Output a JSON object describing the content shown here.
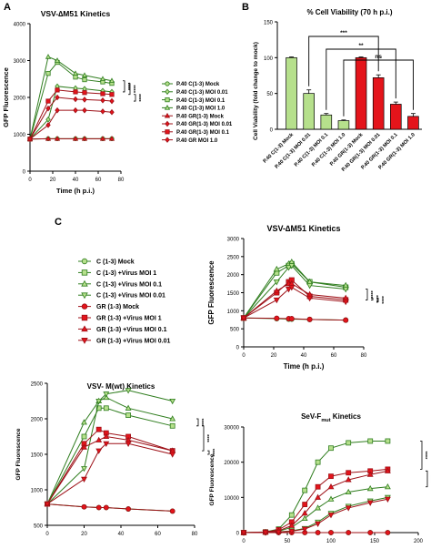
{
  "panel_labels": [
    "A",
    "B",
    "C"
  ],
  "colors": {
    "green_light": "#b6e08c",
    "green_dark": "#2f7d1e",
    "red": "#e4141b",
    "dark_red": "#9d0f16",
    "black": "#000000"
  },
  "chart_data": [
    {
      "id": "A",
      "type": "line",
      "title": "VSV-∆M51 Kinetics",
      "xlabel": "Time (h p.i.)",
      "ylabel": "GFP Fluorescence",
      "xlim": [
        0,
        80
      ],
      "ylim": [
        0,
        4000
      ],
      "xticks": [
        "0",
        "20",
        "40",
        "60",
        "80"
      ],
      "yticks": [
        "0",
        "1000",
        "2000",
        "3000",
        "4000"
      ],
      "x": [
        0,
        16,
        24,
        40,
        48,
        64,
        72
      ],
      "series": [
        {
          "name": "P.40 C(1-3) Mock",
          "marker": "circle",
          "values": [
            870,
            880,
            880,
            880,
            880,
            880,
            880
          ]
        },
        {
          "name": "P.40 C(1-3) MOI 0.01",
          "marker": "diamond",
          "values": [
            870,
            1400,
            2300,
            2250,
            2230,
            2180,
            2150
          ]
        },
        {
          "name": "P.40 C(1-3) MOI 0.1",
          "marker": "square",
          "values": [
            870,
            2650,
            2950,
            2550,
            2480,
            2420,
            2380
          ]
        },
        {
          "name": "P.40 C(1-3) MOI 1.0",
          "marker": "triangle",
          "values": [
            870,
            3100,
            3000,
            2650,
            2600,
            2500,
            2450
          ]
        },
        {
          "name": "P.40 GR(1-3) Mock",
          "marker": "triangle",
          "values": [
            870,
            880,
            880,
            880,
            880,
            880,
            880
          ]
        },
        {
          "name": "P.40 GR(1-3) MOI 0.01",
          "marker": "diamond",
          "values": [
            870,
            1250,
            1650,
            1650,
            1650,
            1620,
            1600
          ]
        },
        {
          "name": "P.40 GR(1-3) MOI 0.1",
          "marker": "square",
          "values": [
            870,
            1900,
            2200,
            2150,
            2130,
            2100,
            2080
          ]
        },
        {
          "name": "P.40 GR MOI 1.0",
          "marker": "diamond",
          "values": [
            870,
            1700,
            2000,
            1950,
            1940,
            1920,
            1900
          ]
        }
      ],
      "annotations": [
        "****",
        "****",
        "****"
      ]
    },
    {
      "id": "B",
      "type": "bar",
      "title": "% Cell Viability (70 h p.i.)",
      "ylabel": "Cell Viability (fold change to mock)",
      "ylim": [
        0,
        150
      ],
      "yticks": [
        "0",
        "50",
        "100",
        "150"
      ],
      "categories": [
        "P.40 C(1-3) Mock",
        "P.40 C(1-3) MOI 0.01",
        "P.40 C(1-3) MOI 0.1",
        "P.40 C(1-3) MOI 1.0",
        "P.40 GR(1-3) Mock",
        "P.40 GR(1-3) MOI 0.01",
        "P.40 GR(1-3) MOI 0.1",
        "P.40 GR(1-3) MOI 1.0"
      ],
      "values": [
        100,
        50,
        20,
        12,
        100,
        72,
        35,
        18
      ],
      "errors": [
        1,
        5,
        2,
        1,
        1,
        4,
        3,
        4
      ],
      "group": [
        "C",
        "C",
        "C",
        "C",
        "GR",
        "GR",
        "GR",
        "GR"
      ],
      "significance": [
        {
          "from": 1,
          "to": 5,
          "label": "***"
        },
        {
          "from": 2,
          "to": 6,
          "label": "**"
        },
        {
          "from": 3,
          "to": 7,
          "label": "ns"
        }
      ]
    },
    {
      "id": "C1",
      "type": "line",
      "title": "VSV-∆M51 Kinetics",
      "xlabel": "Time (h p.i.)",
      "ylabel": "GFP Fluorescence",
      "xlim": [
        0,
        80
      ],
      "ylim": [
        0,
        3000
      ],
      "xticks": [
        "0",
        "20",
        "40",
        "60",
        "80"
      ],
      "yticks": [
        "0",
        "500",
        "1000",
        "1500",
        "2000",
        "2500",
        "3000"
      ],
      "x": [
        0,
        22,
        30,
        32,
        44,
        68
      ],
      "series": [
        {
          "name": "C (1-3) Mock",
          "marker": "circle",
          "values": [
            800,
            780,
            770,
            770,
            760,
            740
          ]
        },
        {
          "name": "C (1-3) +Virus MOI 1",
          "marker": "square",
          "values": [
            800,
            2050,
            2250,
            2300,
            1800,
            1650
          ]
        },
        {
          "name": "C (1-3) +Virus MOI 0.1",
          "marker": "triangle",
          "values": [
            800,
            2150,
            2300,
            2350,
            1800,
            1700
          ]
        },
        {
          "name": "C (1-3) +Virus MOI 0.01",
          "marker": "invtriangle",
          "values": [
            800,
            1800,
            2200,
            2250,
            1700,
            1600
          ]
        },
        {
          "name": "GR (1-3) Mock",
          "marker": "circle",
          "values": [
            800,
            790,
            780,
            780,
            760,
            740
          ]
        },
        {
          "name": "GR (1-3) +Virus MOI 1",
          "marker": "square",
          "values": [
            800,
            1500,
            1800,
            1850,
            1400,
            1300
          ]
        },
        {
          "name": "GR (1-3) +Virus MOI 0.1",
          "marker": "triangle",
          "values": [
            800,
            1550,
            1750,
            1750,
            1450,
            1350
          ]
        },
        {
          "name": "GR (1-3) +Virus MOI 0.01",
          "marker": "invtriangle",
          "values": [
            800,
            1300,
            1600,
            1650,
            1350,
            1250
          ]
        }
      ],
      "annotations": [
        "****",
        "****",
        "****"
      ]
    },
    {
      "id": "C2",
      "type": "line",
      "title": "VSV- M(wt) Kinetics",
      "xlabel": "",
      "ylabel": "GFP Fluorescence",
      "xlim": [
        0,
        80
      ],
      "ylim": [
        500,
        2500
      ],
      "xticks": [
        "0",
        "20",
        "40",
        "60",
        "80"
      ],
      "yticks": [
        "500",
        "1000",
        "1500",
        "2000",
        "2500"
      ],
      "x": [
        0,
        20,
        28,
        32,
        44,
        68
      ],
      "series": [
        {
          "name": "C (1-3) Mock",
          "marker": "circle",
          "values": [
            800,
            760,
            750,
            750,
            730,
            700
          ]
        },
        {
          "name": "C (1-3) +Virus MOI 1",
          "marker": "square",
          "values": [
            800,
            1750,
            2150,
            2150,
            2050,
            1900
          ]
        },
        {
          "name": "C (1-3) +Virus MOI 0.1",
          "marker": "triangle",
          "values": [
            800,
            1950,
            2250,
            2300,
            2150,
            2000
          ]
        },
        {
          "name": "C (1-3) +Virus MOI 0.01",
          "marker": "invtriangle",
          "values": [
            800,
            1300,
            2250,
            2350,
            2400,
            2250
          ]
        },
        {
          "name": "GR (1-3) Mock",
          "marker": "circle",
          "values": [
            800,
            760,
            750,
            750,
            730,
            700
          ]
        },
        {
          "name": "GR (1-3) +Virus MOI 1",
          "marker": "square",
          "values": [
            800,
            1650,
            1850,
            1800,
            1750,
            1550
          ]
        },
        {
          "name": "GR (1-3) +Virus MOI 0.1",
          "marker": "triangle",
          "values": [
            800,
            1600,
            1700,
            1750,
            1700,
            1550
          ]
        },
        {
          "name": "GR (1-3) +Virus MOI 0.01",
          "marker": "invtriangle",
          "values": [
            800,
            1150,
            1550,
            1650,
            1650,
            1500
          ]
        }
      ],
      "annotations": [
        "****",
        "****",
        "****"
      ]
    },
    {
      "id": "C3",
      "type": "line",
      "title": "SeV-F",
      "title_sub": "mut",
      "title_suffix": " Kinetics",
      "xlabel": "",
      "ylabel": "GFP Fluorescence",
      "xlim": [
        0,
        200
      ],
      "ylim": [
        0,
        30000
      ],
      "xticks": [
        "0",
        "50",
        "100",
        "150",
        "200"
      ],
      "yticks": [
        "0",
        "10000",
        "20000",
        "30000"
      ],
      "x": [
        0,
        25,
        40,
        55,
        70,
        85,
        100,
        120,
        145,
        165
      ],
      "series": [
        {
          "name": "C (1-3) Mock",
          "marker": "circle",
          "values": [
            0,
            0,
            0,
            0,
            0,
            0,
            0,
            0,
            0,
            0
          ]
        },
        {
          "name": "C (1-3) +Virus MOI 1",
          "marker": "square",
          "values": [
            0,
            200,
            1000,
            5000,
            12000,
            20000,
            24000,
            25500,
            26000,
            26000
          ]
        },
        {
          "name": "C (1-3) +Virus MOI 0.1",
          "marker": "triangle",
          "values": [
            0,
            100,
            400,
            1500,
            4000,
            7000,
            9500,
            11500,
            12500,
            13000
          ]
        },
        {
          "name": "C (1-3) +Virus MOI 0.01",
          "marker": "invtriangle",
          "values": [
            0,
            50,
            200,
            500,
            1200,
            3000,
            5500,
            7500,
            9000,
            10000
          ]
        },
        {
          "name": "GR (1-3) Mock",
          "marker": "circle",
          "values": [
            0,
            0,
            0,
            0,
            0,
            0,
            0,
            0,
            0,
            0
          ]
        },
        {
          "name": "GR (1-3) +Virus MOI 1",
          "marker": "square",
          "values": [
            0,
            150,
            800,
            3000,
            8000,
            13000,
            16000,
            17000,
            17500,
            18000
          ]
        },
        {
          "name": "GR (1-3) +Virus MOI 0.1",
          "marker": "triangle",
          "values": [
            0,
            100,
            500,
            2000,
            5500,
            10000,
            13000,
            15000,
            16500,
            17500
          ]
        },
        {
          "name": "GR (1-3) +Virus MOI 0.01",
          "marker": "invtriangle",
          "values": [
            0,
            50,
            150,
            400,
            1000,
            2500,
            5000,
            7000,
            8500,
            9500
          ]
        }
      ],
      "annotations": [
        "****",
        "****",
        "ns"
      ]
    }
  ],
  "legend_c": [
    "C (1-3) Mock",
    "C (1-3) +Virus MOI 1",
    "C (1-3) +Virus MOI 0.1",
    "C (1-3) +Virus MOI 0.01",
    "GR (1-3) Mock",
    "GR (1-3) +Virus MOI 1",
    "GR (1-3) +Virus MOI 0.1",
    "GR (1-3) +Virus MOI 0.01"
  ]
}
